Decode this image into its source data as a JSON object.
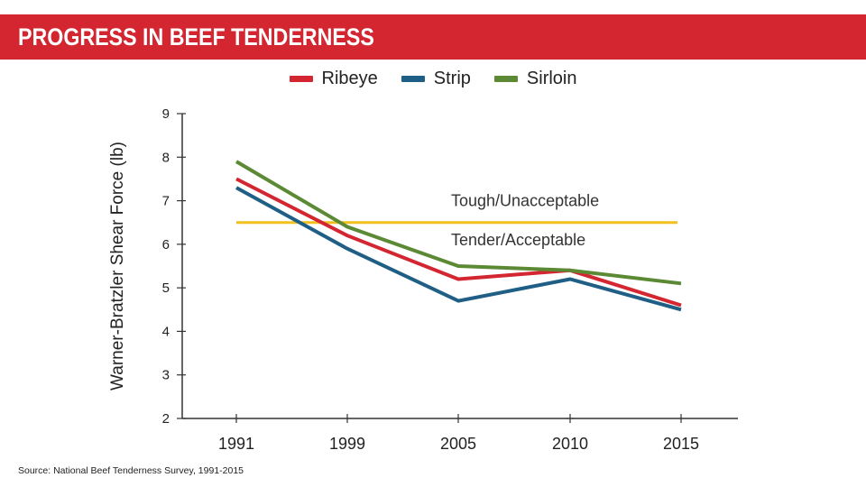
{
  "header": {
    "title": "PROGRESS IN BEEF TENDERNESS"
  },
  "chart_data": {
    "type": "line",
    "x": [
      "1991",
      "1999",
      "2005",
      "2010",
      "2015"
    ],
    "series": [
      {
        "name": "Ribeye",
        "color": "#d32631",
        "values": [
          7.5,
          6.2,
          5.2,
          5.4,
          4.6
        ]
      },
      {
        "name": "Strip",
        "color": "#1f5f86",
        "values": [
          7.3,
          5.9,
          4.7,
          5.2,
          4.5
        ]
      },
      {
        "name": "Sirloin",
        "color": "#5c8a34",
        "values": [
          7.9,
          6.4,
          5.5,
          5.4,
          5.1
        ]
      }
    ],
    "ylabel": "Warner-Bratzler Shear Force (lb)",
    "xlabel": "",
    "ylim": [
      2,
      9
    ],
    "yticks": [
      2,
      3,
      4,
      5,
      6,
      7,
      8,
      9
    ],
    "legend": "top-center",
    "grid": false,
    "threshold": {
      "value": 6.5,
      "color": "#f2c01e"
    },
    "annotations": [
      {
        "text": "Tough/Unacceptable",
        "y": 7.0
      },
      {
        "text": "Tender/Acceptable",
        "y": 6.1
      }
    ]
  },
  "footer": {
    "source": "Source: National Beef Tenderness Survey, 1991-2015"
  }
}
